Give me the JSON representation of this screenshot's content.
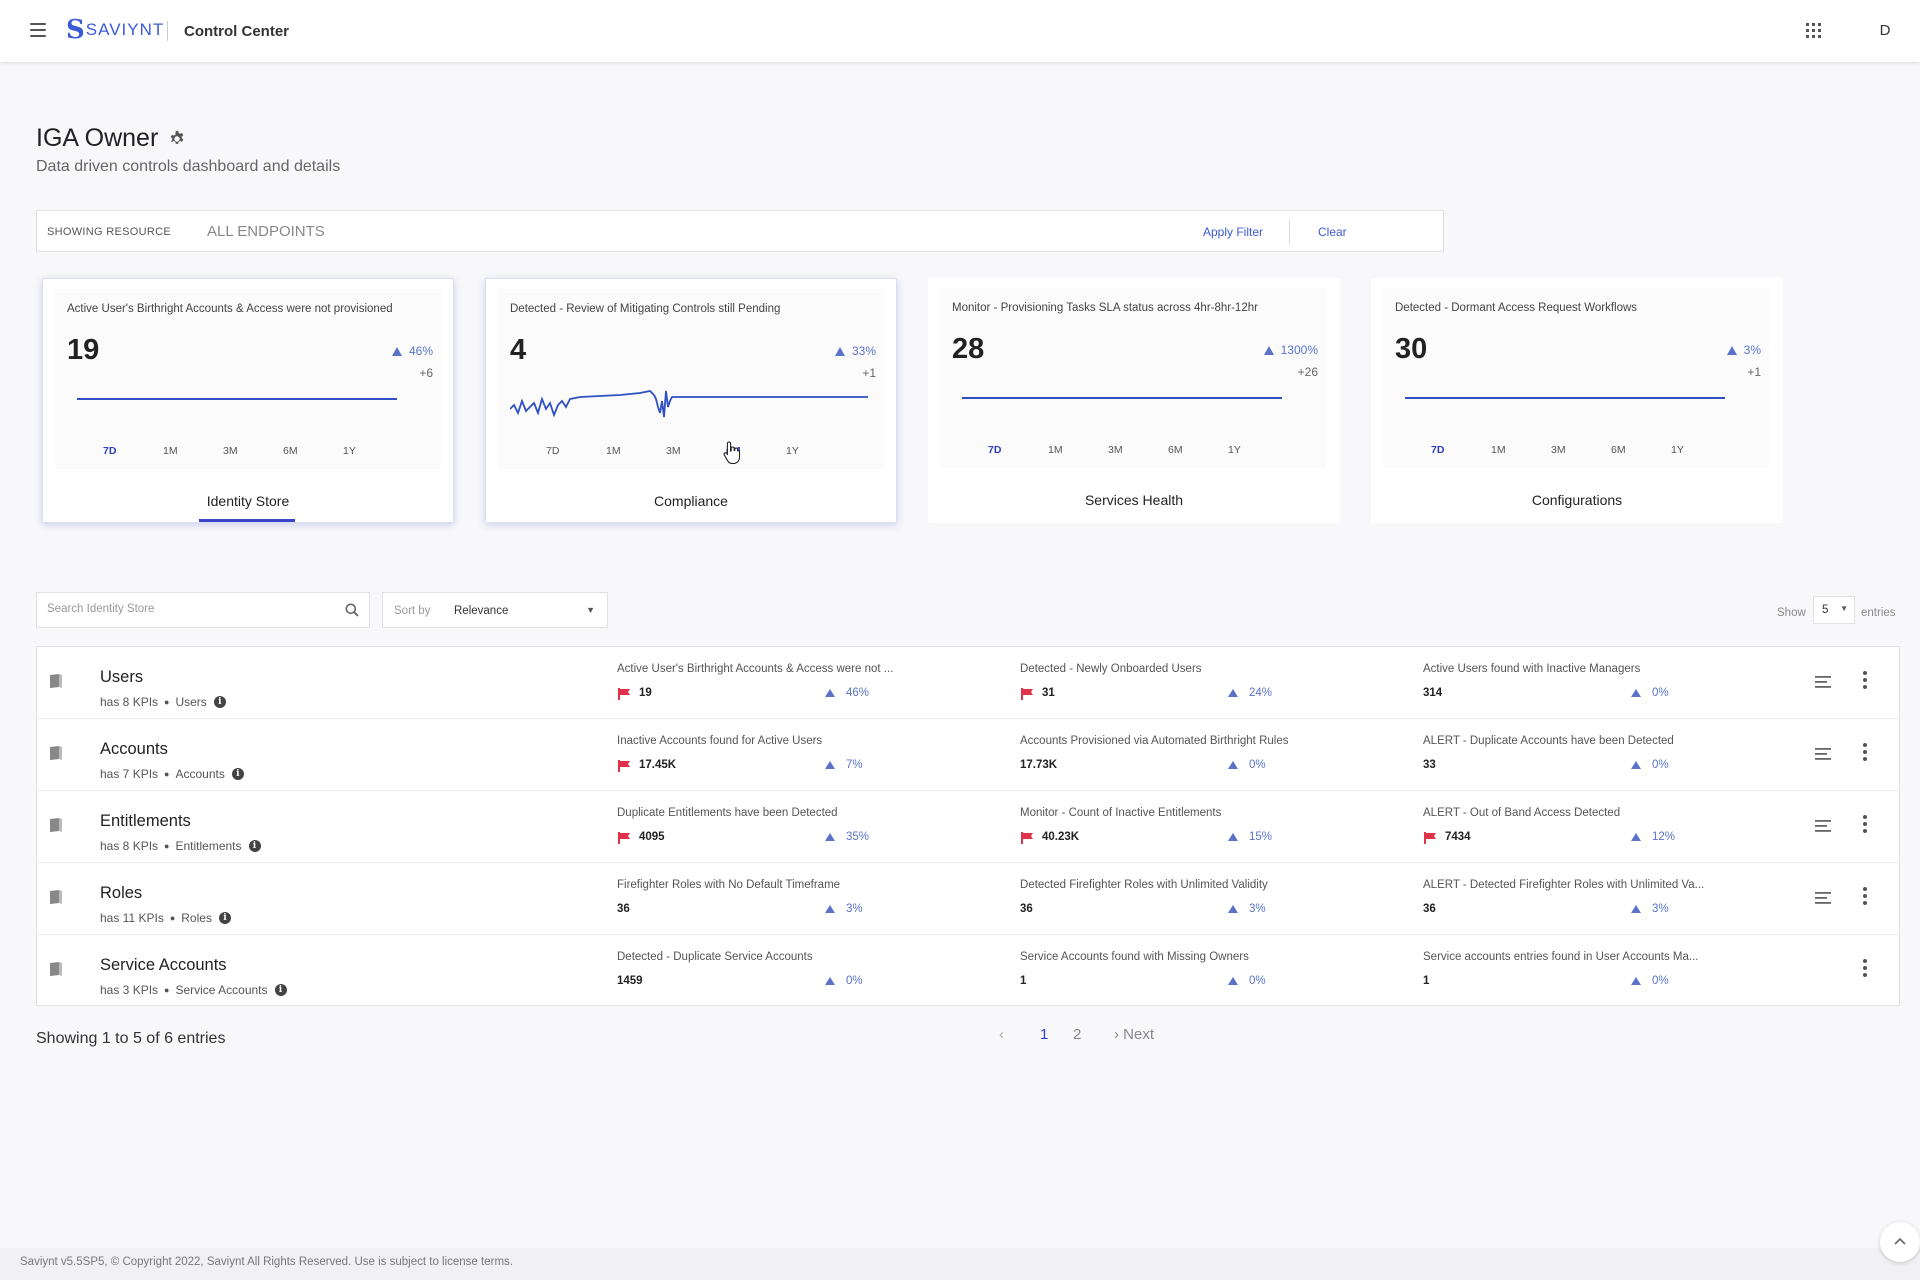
{
  "header": {
    "logo_text": "SAVIYNT",
    "app_title": "Control Center",
    "avatar_initial": "D",
    "menu_icon": "hamburger-icon",
    "apps_icon": "grid-icon"
  },
  "page": {
    "title": "IGA Owner",
    "subtitle": "Data driven controls dashboard and details"
  },
  "filter": {
    "label": "SHOWING RESOURCE",
    "value": "ALL ENDPOINTS",
    "apply": "Apply Filter",
    "clear": "Clear"
  },
  "cards": [
    {
      "title": "Active User's Birthright Accounts & Access were not provisioned",
      "value": "19",
      "pct": "46%",
      "delta": "+6",
      "label": "Identity Store",
      "selected_period": "7D"
    },
    {
      "title": "Detected - Review of Mitigating Controls still Pending",
      "value": "4",
      "pct": "33%",
      "delta": "+1",
      "label": "Compliance",
      "selected_period": "6M"
    },
    {
      "title": "Monitor - Provisioning Tasks SLA status across 4hr-8hr-12hr",
      "value": "28",
      "pct": "1300%",
      "delta": "+26",
      "label": "Services Health",
      "selected_period": "7D"
    },
    {
      "title": "Detected - Dormant Access Request Workflows",
      "value": "30",
      "pct": "3%",
      "delta": "+1",
      "label": "Configurations",
      "selected_period": "7D"
    }
  ],
  "periods": [
    "7D",
    "1M",
    "3M",
    "6M",
    "1Y"
  ],
  "search": {
    "placeholder": "Search Identity Store",
    "sort_label": "Sort by",
    "sort_value": "Relevance",
    "show_label": "Show",
    "show_value": "5",
    "entries_label": "entries"
  },
  "rows": [
    {
      "title": "Users",
      "kpi_count": "has 8 KPIs",
      "category": "Users",
      "kpis": [
        {
          "title": "Active User's Birthright Accounts & Access were not ...",
          "value": "19",
          "flag": true,
          "trend": "46%"
        },
        {
          "title": "Detected - Newly Onboarded Users",
          "value": "31",
          "flag": true,
          "trend": "24%"
        },
        {
          "title": "Active Users found with Inactive Managers",
          "value": "314",
          "flag": false,
          "trend": "0%"
        }
      ],
      "has_lines": true
    },
    {
      "title": "Accounts",
      "kpi_count": "has 7 KPIs",
      "category": "Accounts",
      "kpis": [
        {
          "title": "Inactive Accounts found for Active Users",
          "value": "17.45K",
          "flag": true,
          "trend": "7%"
        },
        {
          "title": "Accounts Provisioned via Automated Birthright Rules",
          "value": "17.73K",
          "flag": false,
          "trend": "0%"
        },
        {
          "title": "ALERT - Duplicate Accounts have been Detected",
          "value": "33",
          "flag": false,
          "trend": "0%"
        }
      ],
      "has_lines": true
    },
    {
      "title": "Entitlements",
      "kpi_count": "has 8 KPIs",
      "category": "Entitlements",
      "kpis": [
        {
          "title": "Duplicate Entitlements have been Detected",
          "value": "4095",
          "flag": true,
          "trend": "35%"
        },
        {
          "title": "Monitor - Count of Inactive Entitlements",
          "value": "40.23K",
          "flag": true,
          "trend": "15%"
        },
        {
          "title": "ALERT - Out of Band Access Detected",
          "value": "7434",
          "flag": true,
          "trend": "12%"
        }
      ],
      "has_lines": true
    },
    {
      "title": "Roles",
      "kpi_count": "has 11 KPIs",
      "category": "Roles",
      "kpis": [
        {
          "title": "Firefighter Roles with No Default Timeframe",
          "value": "36",
          "flag": false,
          "trend": "3%"
        },
        {
          "title": "Detected Firefighter Roles with Unlimited Validity",
          "value": "36",
          "flag": false,
          "trend": "3%"
        },
        {
          "title": "ALERT - Detected Firefighter Roles with Unlimited Va...",
          "value": "36",
          "flag": false,
          "trend": "3%"
        }
      ],
      "has_lines": true
    },
    {
      "title": "Service Accounts",
      "kpi_count": "has 3 KPIs",
      "category": "Service Accounts",
      "kpis": [
        {
          "title": "Detected - Duplicate Service Accounts",
          "value": "1459",
          "flag": false,
          "trend": "0%"
        },
        {
          "title": "Service Accounts found with Missing Owners",
          "value": "1",
          "flag": false,
          "trend": "0%"
        },
        {
          "title": "Service accounts entries found in User Accounts Ma...",
          "value": "1",
          "flag": false,
          "trend": "0%"
        }
      ],
      "has_lines": false
    }
  ],
  "pagination": {
    "summary": "Showing 1 to 5 of 6 entries",
    "prev": "‹",
    "pages": [
      "1",
      "2"
    ],
    "next": "› Next"
  },
  "footer": {
    "text": "Saviynt v5.5SP5, © Copyright 2022, Saviynt All Rights Reserved. Use is subject to license terms."
  },
  "colors": {
    "accent": "#3b5bd6",
    "tab_underline": "#3b44c9",
    "flag_red": "#e0334a",
    "trend_blue": "#5a73c9"
  }
}
